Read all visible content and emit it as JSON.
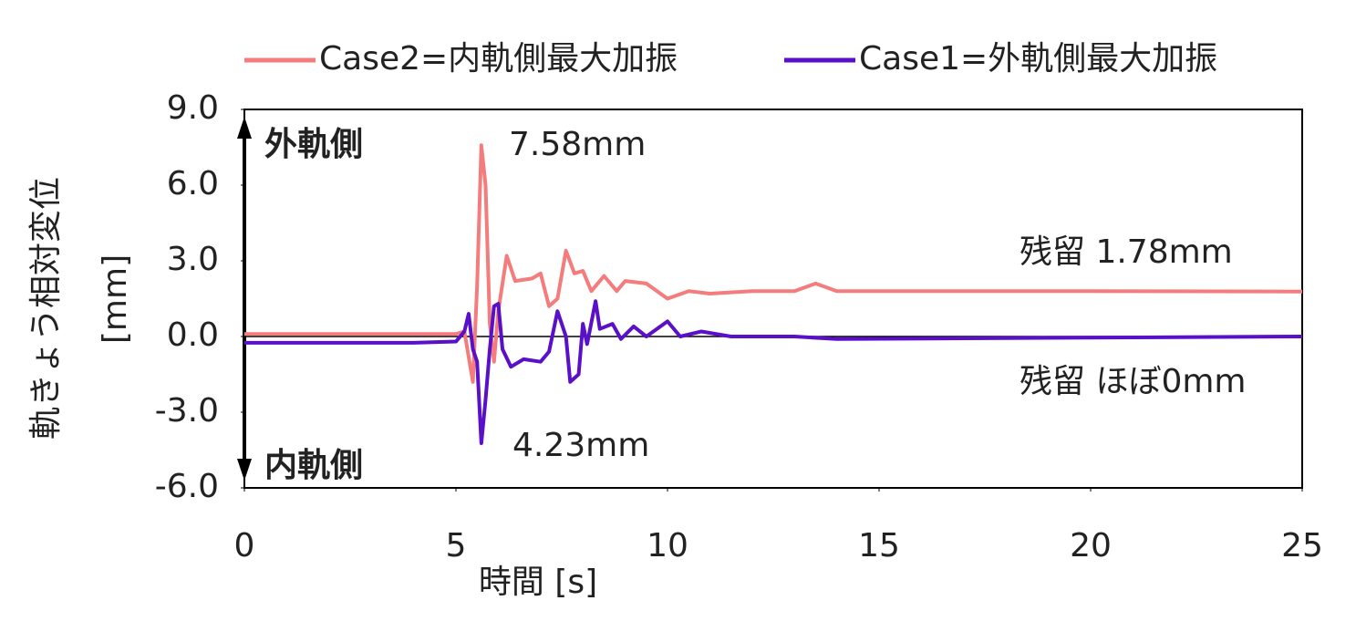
{
  "chart_data": {
    "type": "line",
    "y_label": [
      "軌きょう相対変位",
      "[mm]"
    ],
    "x_label": "時間 [s]",
    "xlim": [
      0,
      25
    ],
    "xticks": [
      0,
      5,
      10,
      15,
      20,
      25
    ],
    "ylim": [
      -6,
      9
    ],
    "yticks": [
      {
        "value": -6,
        "label": "-6.0"
      },
      {
        "value": -3,
        "label": "-3.0"
      },
      {
        "value": 0,
        "label": "0.0"
      },
      {
        "value": 3,
        "label": "3.0"
      },
      {
        "value": 6,
        "label": "6.0"
      },
      {
        "value": 9,
        "label": "9.0"
      }
    ],
    "legend": "top",
    "annotations": [
      "外軌側",
      "内軌側",
      "7.58mm",
      "4.23mm",
      "残留 1.78mm",
      "残留 ほぼ0mm"
    ],
    "series": [
      {
        "name": "Case2=内軌側最大加振",
        "color": "#f47c7c",
        "x": [
          0,
          2,
          4,
          5,
          5.2,
          5.4,
          5.5,
          5.6,
          5.7,
          5.8,
          5.9,
          6.0,
          6.2,
          6.4,
          6.8,
          7.0,
          7.2,
          7.4,
          7.6,
          7.8,
          8.0,
          8.2,
          8.5,
          8.8,
          9.0,
          9.5,
          10,
          10.5,
          11,
          12,
          13,
          13.5,
          14,
          15,
          20,
          25
        ],
        "values": [
          0.1,
          0.1,
          0.1,
          0.1,
          0.2,
          -1.8,
          2,
          7.58,
          6,
          0.5,
          -1,
          1,
          3.2,
          2.2,
          2.3,
          2.5,
          1.2,
          1.5,
          3.4,
          2.5,
          2.6,
          1.8,
          2.4,
          1.8,
          2.2,
          2.1,
          1.5,
          1.8,
          1.7,
          1.8,
          1.8,
          2.1,
          1.8,
          1.8,
          1.8,
          1.78
        ]
      },
      {
        "name": "Case1=外軌側最大加振",
        "color": "#5a10c8",
        "x": [
          0,
          2,
          4,
          5,
          5.2,
          5.3,
          5.4,
          5.5,
          5.6,
          5.7,
          5.8,
          5.9,
          6.0,
          6.1,
          6.3,
          6.6,
          7.0,
          7.2,
          7.4,
          7.6,
          7.7,
          7.9,
          8.0,
          8.1,
          8.3,
          8.4,
          8.7,
          8.9,
          9.2,
          9.5,
          10,
          10.3,
          10.8,
          11.5,
          13,
          14,
          25
        ],
        "values": [
          -0.25,
          -0.25,
          -0.25,
          -0.2,
          0.2,
          0.9,
          -0.5,
          -1,
          -4.23,
          -2.5,
          -0.5,
          1.2,
          1.3,
          -0.5,
          -1.2,
          -0.9,
          -1,
          -0.6,
          1,
          0,
          -1.8,
          -1.5,
          0.5,
          -0.3,
          1.4,
          0.3,
          0.5,
          -0.1,
          0.4,
          0,
          0.6,
          0,
          0.2,
          0,
          0,
          -0.1,
          0
        ]
      }
    ]
  }
}
